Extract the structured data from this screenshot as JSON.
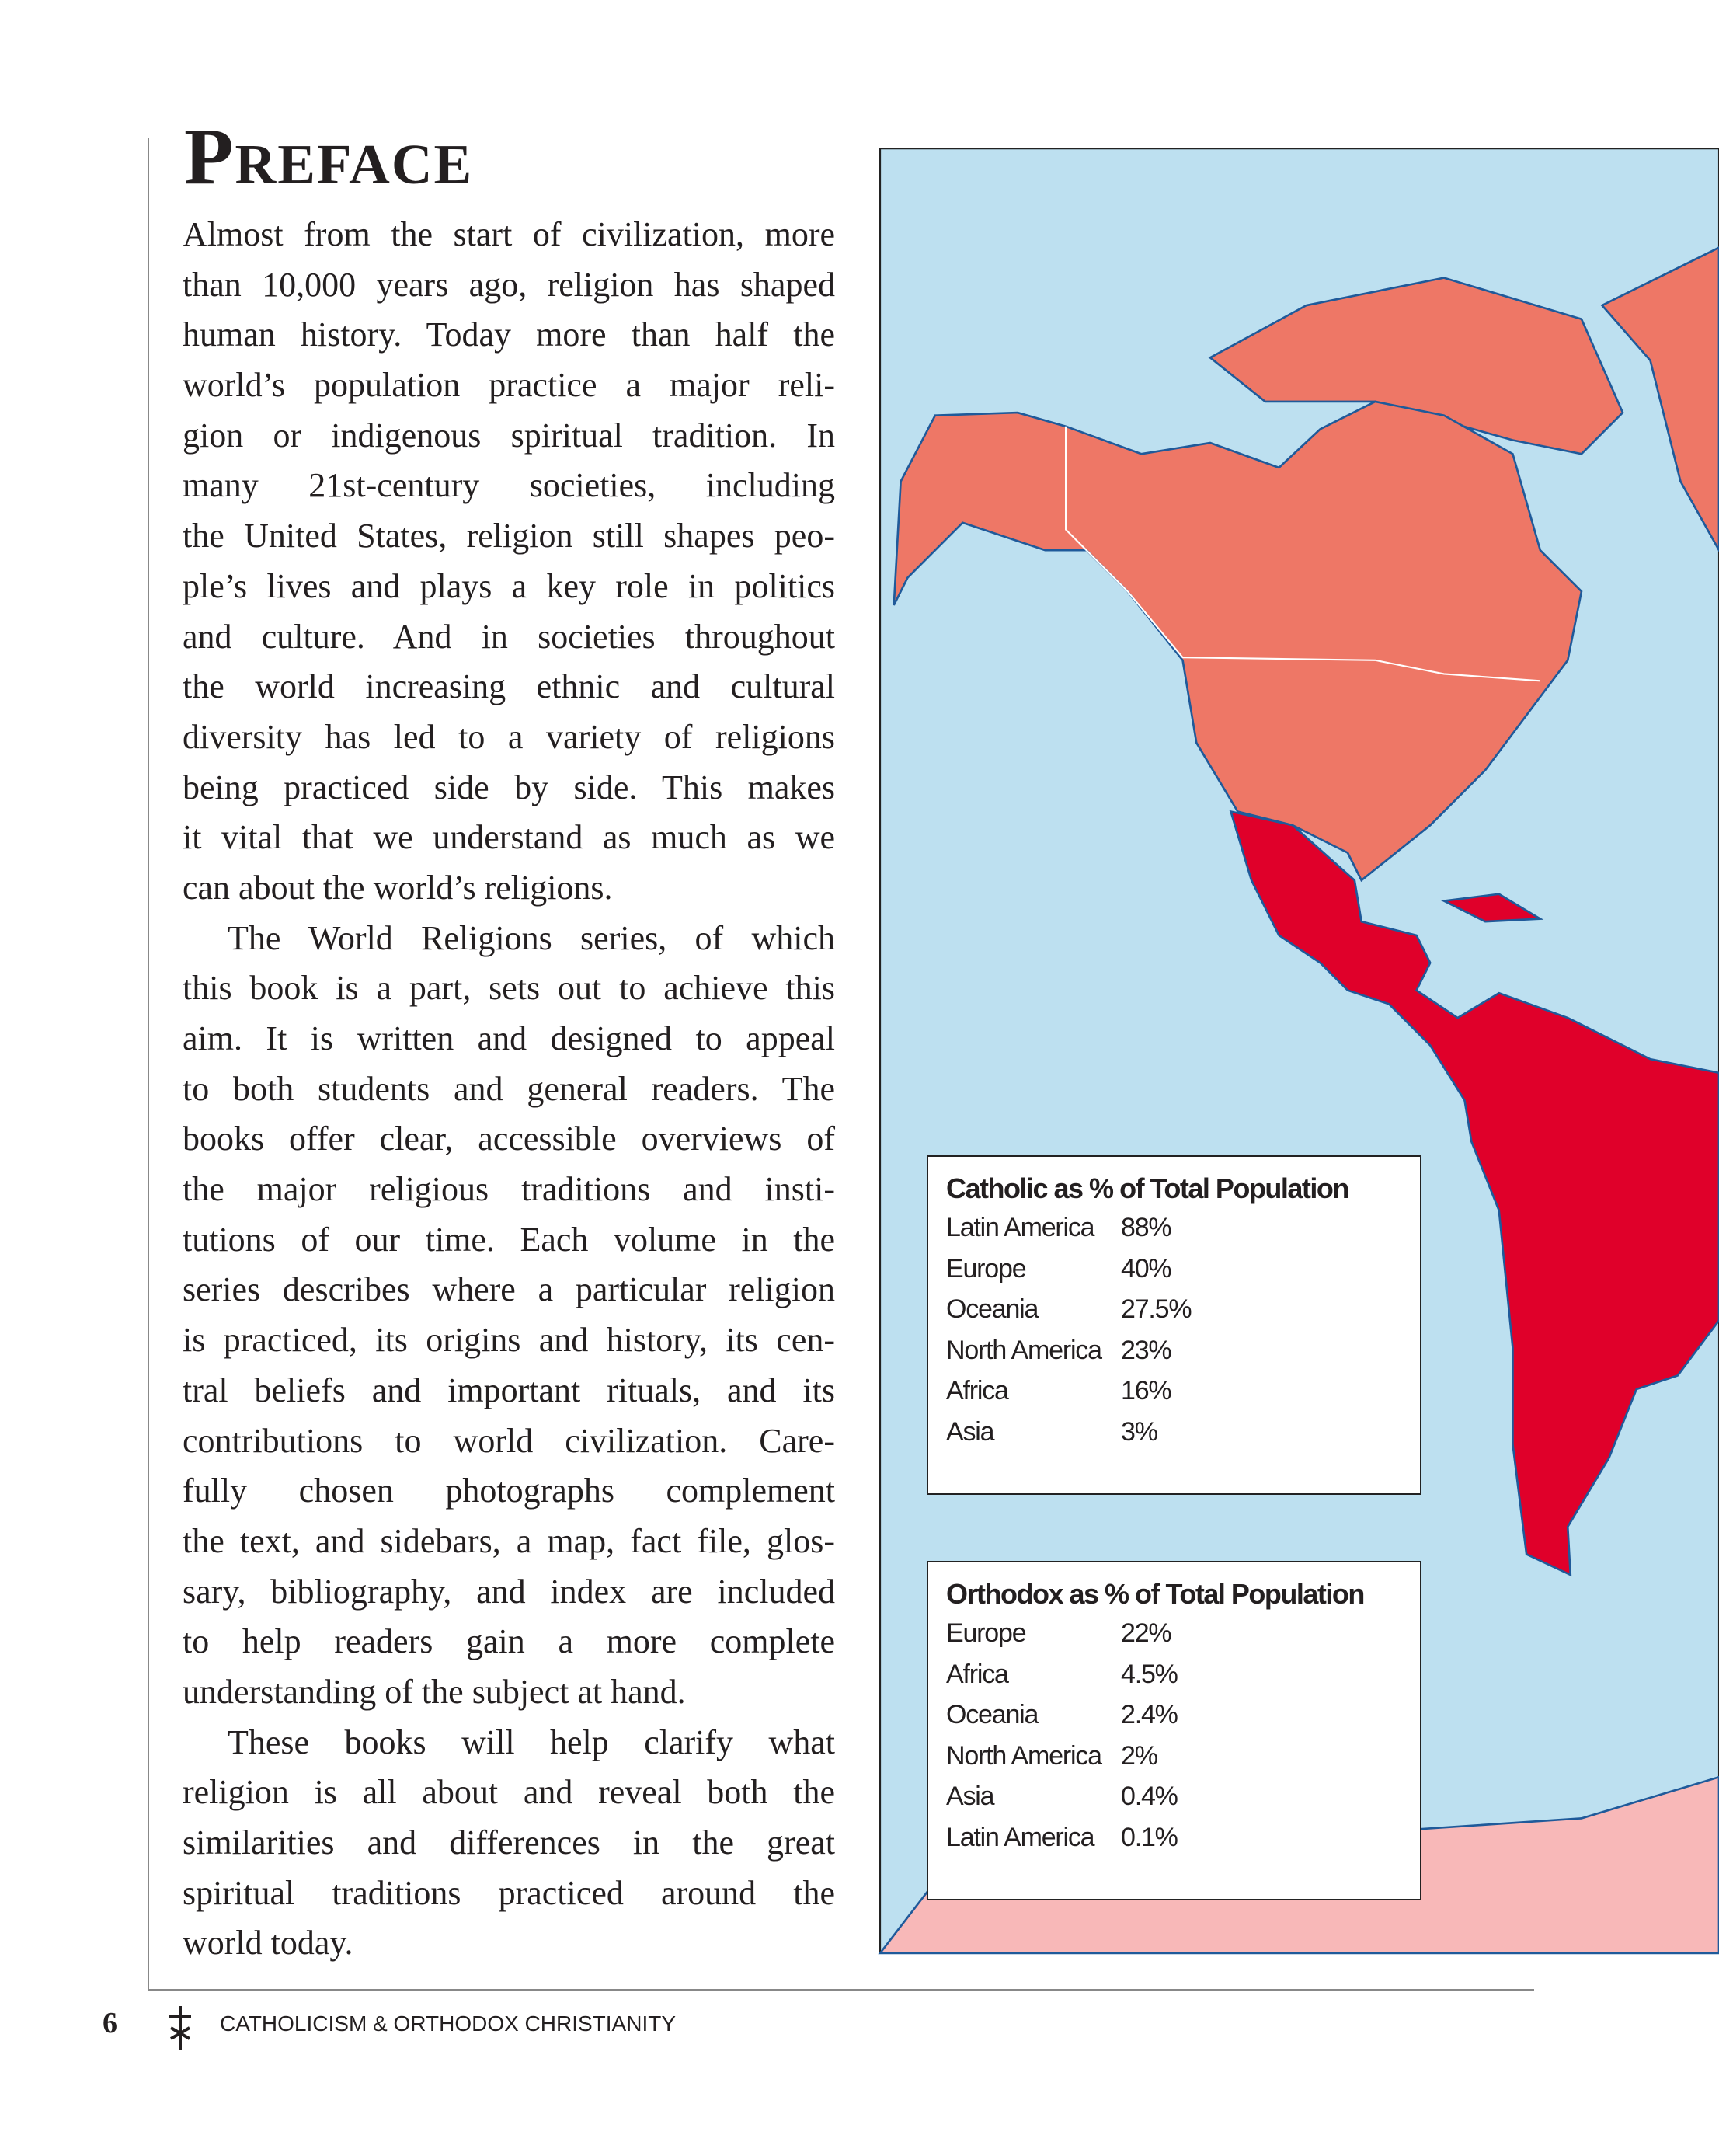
{
  "header": {
    "title": "Preface"
  },
  "paragraphs": [
    [
      "Almost from the start of civilization, more",
      "than 10,000 years ago, religion has shaped",
      "human history. Today more than half the",
      "world’s population practice a major reli-",
      "gion or indigenous spiritual tradition. In",
      "many 21st-century societies, including",
      "the United States, religion still shapes peo-",
      "ple’s lives and plays a key role in politics",
      "and culture. And in societies throughout",
      "the world increasing ethnic and cultural",
      "diversity has led to a variety of religions",
      "being practiced side by side. This makes",
      "it vital that we understand as much as we",
      "can about the world’s religions."
    ],
    [
      "The World Religions series, of which",
      "this book is a part, sets out to achieve this",
      "aim. It is written and designed to appeal",
      "to both students and general readers. The",
      "books offer clear, accessible overviews of",
      "the major religious traditions and insti-",
      "tutions of our time. Each volume in the",
      "series describes where a particular religion",
      "is practiced, its origins and history, its cen-",
      "tral beliefs and important rituals, and its",
      "contributions to world civilization. Care-",
      "fully chosen photographs complement",
      "the text, and sidebars, a map, fact file, glos-",
      "sary, bibliography, and index are included",
      "to help readers gain a more complete",
      "understanding of the subject at hand."
    ],
    [
      "These books will help clarify what",
      "religion is all about and reveal both the",
      "similarities and differences in the great",
      "spiritual traditions practiced around the",
      "world today."
    ]
  ],
  "boxes": [
    {
      "title": "Catholic as % of Total Population",
      "rows": [
        [
          "Latin America",
          "88%"
        ],
        [
          "Europe",
          "40%"
        ],
        [
          "Oceania",
          "27.5%"
        ],
        [
          "North America",
          "23%"
        ],
        [
          "Africa",
          "16%"
        ],
        [
          "Asia",
          "3%"
        ]
      ]
    },
    {
      "title": "Orthodox as % of Total Population",
      "rows": [
        [
          "Europe",
          "22%"
        ],
        [
          "Africa",
          "4.5%"
        ],
        [
          "Oceania",
          "2.4%"
        ],
        [
          "North America",
          "2%"
        ],
        [
          "Asia",
          "0.4%"
        ],
        [
          "Latin America",
          "0.1%"
        ]
      ]
    }
  ],
  "footer": {
    "page_number": "6",
    "book_title": "CATHOLICISM & ORTHODOX CHRISTIANITY"
  }
}
